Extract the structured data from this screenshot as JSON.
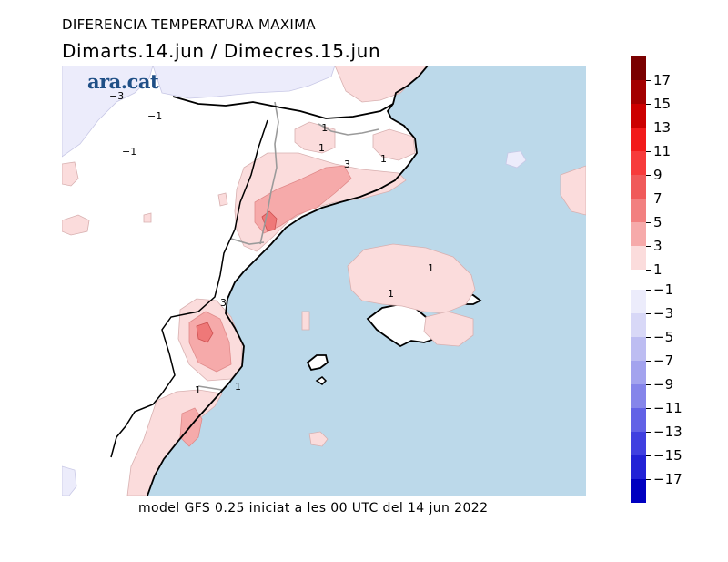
{
  "title": "DIFERENCIA TEMPERATURA MAXIMA",
  "subtitle": "Dimarts.14.jun / Dimecres.15.jun",
  "footer": "model GFS 0.25 iniciat a les 00 UTC del 14 jun 2022",
  "logo": "ara.cat",
  "colors": {
    "sea": "#bcd9ea",
    "land": "#ffffff",
    "warm_1": "#fbdcdc",
    "warm_3": "#f6aaaa",
    "warm_5": "#ef7878",
    "cool_1": "#ececfb"
  },
  "legend": {
    "warm": [
      {
        "label": "17",
        "color": "#7a0000"
      },
      {
        "label": "15",
        "color": "#a30000"
      },
      {
        "label": "13",
        "color": "#cc0000"
      },
      {
        "label": "11",
        "color": "#f21a1a"
      },
      {
        "label": "9",
        "color": "#f73b3b"
      },
      {
        "label": "7",
        "color": "#f05a5a"
      },
      {
        "label": "5",
        "color": "#f28080"
      },
      {
        "label": "3",
        "color": "#f6aaaa"
      },
      {
        "label": "1",
        "color": "#fbdcdc"
      }
    ],
    "cool": [
      {
        "label": "−1",
        "color": "#ececfb"
      },
      {
        "label": "−3",
        "color": "#d8d8f7"
      },
      {
        "label": "−5",
        "color": "#bdbdf2"
      },
      {
        "label": "−7",
        "color": "#a3a3ee"
      },
      {
        "label": "−9",
        "color": "#8585ea"
      },
      {
        "label": "−11",
        "color": "#6262e6"
      },
      {
        "label": "−13",
        "color": "#4040e0"
      },
      {
        "label": "−15",
        "color": "#2222d6"
      },
      {
        "label": "−17",
        "color": "#0000c0"
      }
    ]
  },
  "contour_labels": [
    {
      "text": "−3",
      "kind": "cool"
    },
    {
      "text": "−1",
      "kind": "cool"
    },
    {
      "text": "−1",
      "kind": "cool"
    },
    {
      "text": "−1",
      "kind": "cool"
    },
    {
      "text": "1",
      "kind": "warm"
    },
    {
      "text": "1",
      "kind": "warm"
    },
    {
      "text": "3",
      "kind": "warm"
    },
    {
      "text": "1",
      "kind": "warm"
    },
    {
      "text": "1",
      "kind": "warm"
    },
    {
      "text": "3",
      "kind": "warm"
    },
    {
      "text": "1",
      "kind": "warm"
    },
    {
      "text": "1",
      "kind": "warm"
    }
  ]
}
